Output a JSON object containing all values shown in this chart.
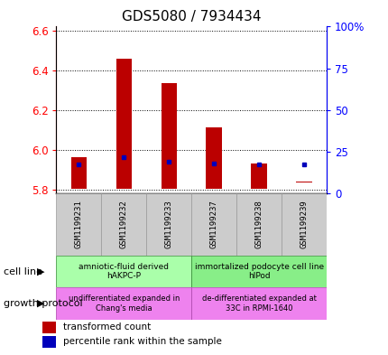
{
  "title": "GDS5080 / 7934434",
  "samples": [
    "GSM1199231",
    "GSM1199232",
    "GSM1199233",
    "GSM1199237",
    "GSM1199238",
    "GSM1199239"
  ],
  "red_bar_bottom": [
    5.805,
    5.805,
    5.805,
    5.805,
    5.805,
    5.835
  ],
  "red_bar_top": [
    5.965,
    6.46,
    6.335,
    6.115,
    5.93,
    5.84
  ],
  "blue_dot_y": [
    5.925,
    5.965,
    5.94,
    5.93,
    5.925,
    5.925
  ],
  "ylim_left": [
    5.78,
    6.62
  ],
  "yticks_left": [
    5.8,
    6.0,
    6.2,
    6.4,
    6.6
  ],
  "yticks_right_vals": [
    0,
    25,
    50,
    75,
    100
  ],
  "yticks_right_labels": [
    "0",
    "25",
    "50",
    "75",
    "100%"
  ],
  "cell_line_label1": "amniotic-fluid derived\nhAKPC-P",
  "cell_line_label2": "immortalized podocyte cell line\nhIPod",
  "cell_line_color1": "#aaffaa",
  "cell_line_color2": "#88ee88",
  "growth_label1": "undifferentiated expanded in\nChang's media",
  "growth_label2": "de-differentiated expanded at\n33C in RPMI-1640",
  "growth_color": "#ee82ee",
  "legend_red": "transformed count",
  "legend_blue": "percentile rank within the sample",
  "cell_line_text": "cell line",
  "growth_protocol_text": "growth protocol",
  "bar_color": "#bb0000",
  "dot_color": "#0000bb",
  "gray_color": "#cccccc",
  "title_fontsize": 11,
  "bar_width": 0.35
}
